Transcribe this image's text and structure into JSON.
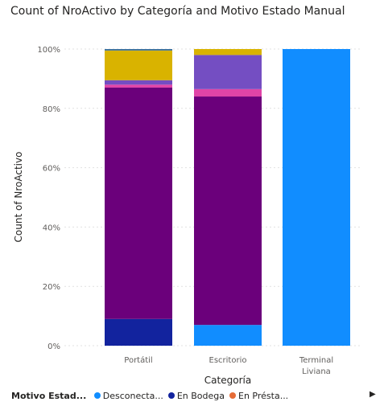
{
  "chart_data": {
    "type": "bar",
    "stacked": true,
    "normalized": true,
    "title": "Count of NroActivo by Categoría and Motivo Estado Manual",
    "xlabel": "Categoría",
    "ylabel": "Count of NroActivo",
    "ylim": [
      0,
      100
    ],
    "y_ticks": [
      "0%",
      "20%",
      "40%",
      "60%",
      "80%",
      "100%"
    ],
    "categories": [
      "Portátil",
      "Escritorio",
      "Terminal Liviana"
    ],
    "grid": true,
    "legend_position": "bottom",
    "legend_title": "Motivo Estad...",
    "series": [
      {
        "name": "Desconecta...",
        "color": "#118DFF",
        "values": [
          0,
          7,
          100
        ]
      },
      {
        "name": "En Bodega",
        "color": "#12239E",
        "values": [
          9,
          0,
          0
        ]
      },
      {
        "name": "",
        "color": "#6B007B",
        "values": [
          78,
          77,
          0
        ]
      },
      {
        "name": "",
        "color": "#E044A7",
        "values": [
          1,
          2.5,
          0
        ]
      },
      {
        "name": "",
        "color": "#744EC2",
        "values": [
          1.5,
          11.5,
          0
        ]
      },
      {
        "name": "",
        "color": "#D9B300",
        "values": [
          10,
          2,
          0
        ]
      },
      {
        "name": "",
        "color": "#3A6F98",
        "values": [
          0.5,
          0,
          0
        ]
      }
    ]
  },
  "legend": {
    "title": "Motivo Estad...",
    "items": [
      {
        "label": "Desconecta...",
        "color": "#118DFF"
      },
      {
        "label": "En Bodega",
        "color": "#12239E"
      },
      {
        "label": "En Présta...",
        "color": "#E66C37"
      }
    ],
    "next_glyph": "▶"
  }
}
